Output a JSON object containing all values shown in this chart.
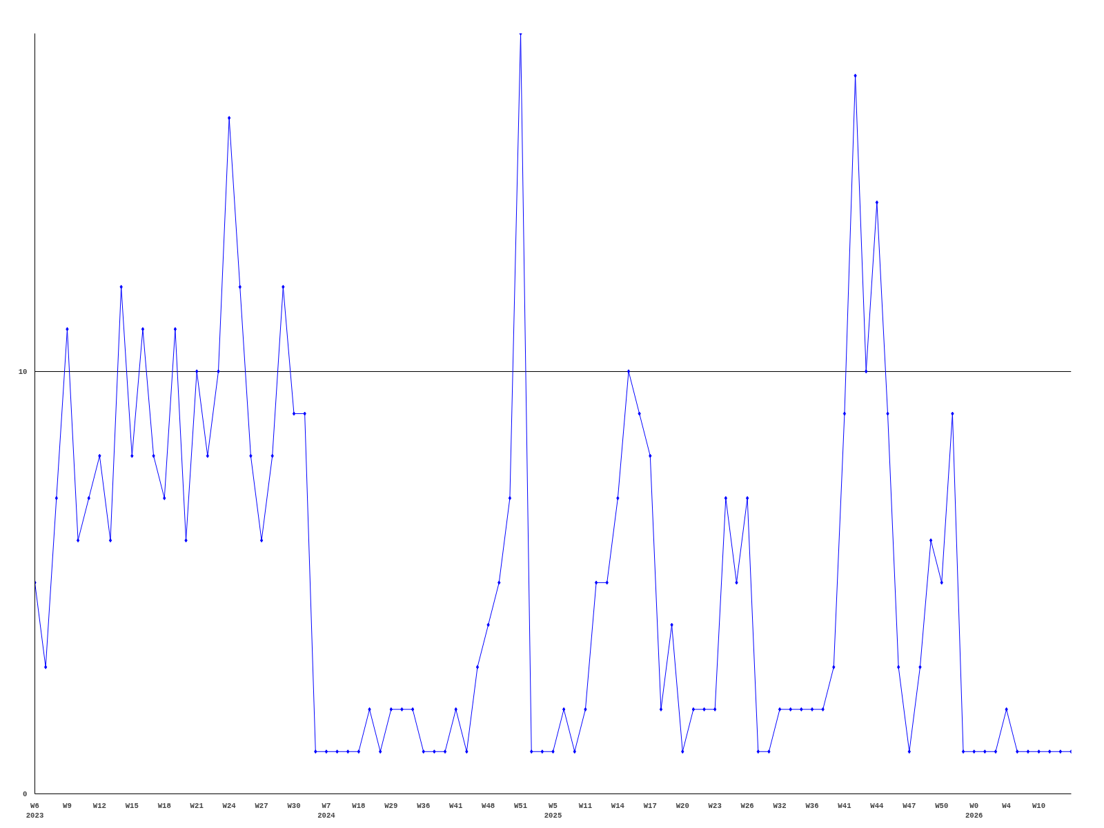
{
  "chart_data": {
    "type": "line",
    "categories": [
      "W6\n2023",
      null,
      null,
      "W9",
      null,
      null,
      "W12",
      null,
      null,
      "W15",
      null,
      null,
      "W18",
      null,
      null,
      "W21",
      null,
      null,
      "W24",
      null,
      null,
      "W27",
      null,
      null,
      "W30",
      null,
      null,
      "W7\n2024",
      null,
      null,
      "W18",
      null,
      null,
      "W29",
      null,
      null,
      "W36",
      null,
      null,
      "W41",
      null,
      null,
      "W48",
      null,
      null,
      "W51",
      null,
      null,
      "W5\n2025",
      null,
      null,
      "W11",
      null,
      null,
      "W14",
      null,
      null,
      "W17",
      null,
      null,
      "W20",
      null,
      null,
      "W23",
      null,
      null,
      "W26",
      null,
      null,
      "W32",
      null,
      null,
      "W36",
      null,
      null,
      "W41",
      null,
      null,
      "W44",
      null,
      null,
      "W47",
      null,
      null,
      "W50",
      null,
      null,
      "W0\n2026",
      null,
      null,
      "W4",
      null,
      null,
      "W10",
      null,
      null,
      null
    ],
    "series": [
      {
        "color": "#0000ff",
        "values": [
          5,
          3,
          7,
          11,
          6,
          7,
          8,
          6,
          12,
          8,
          11,
          8,
          7,
          11,
          6,
          10,
          8,
          10,
          16,
          12,
          8,
          6,
          8,
          12,
          9,
          9,
          1,
          1,
          1,
          1,
          1,
          2,
          1,
          2,
          2,
          2,
          1,
          1,
          1,
          2,
          1,
          3,
          4,
          5,
          7,
          18,
          1,
          1,
          1,
          2,
          1,
          2,
          5,
          5,
          7,
          10,
          9,
          8,
          2,
          4,
          1,
          2,
          2,
          2,
          7,
          5,
          7,
          1,
          1,
          2,
          2,
          2,
          2,
          2,
          3,
          9,
          17,
          10,
          14,
          9,
          3,
          1,
          3,
          6,
          5,
          9,
          1,
          1,
          1,
          1,
          2,
          1,
          1,
          1,
          1,
          1,
          1
        ]
      }
    ],
    "ylim": [
      0,
      18
    ],
    "yticks": [
      0,
      10
    ],
    "grid": "y",
    "marker": "diamond",
    "line_style": "solid"
  }
}
